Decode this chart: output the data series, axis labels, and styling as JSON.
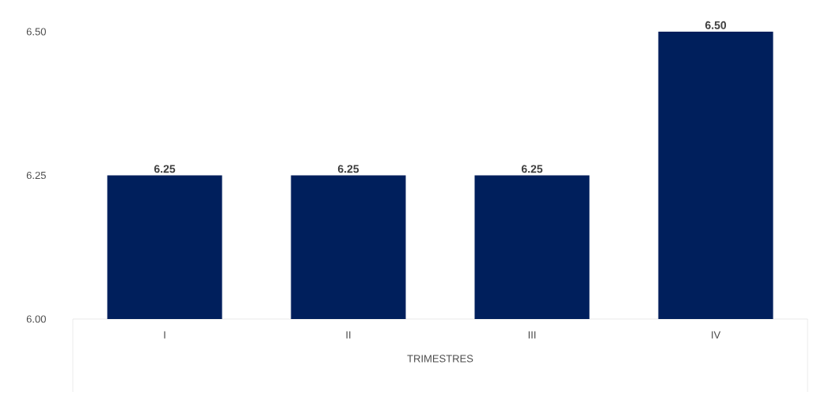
{
  "chart_data": {
    "type": "bar",
    "xlabel": "TRIMESTRES",
    "categories": [
      "I",
      "II",
      "III",
      "IV"
    ],
    "values": [
      6.25,
      6.25,
      6.25,
      6.5
    ],
    "color": "#001f5c",
    "value_labels": [
      "6.25",
      "6.25",
      "6.25",
      "6.50"
    ],
    "ylim": [
      6.0,
      6.5
    ],
    "yticks": [
      {
        "value": 6.0,
        "label": "6.00"
      },
      {
        "value": 6.25,
        "label": "6.25"
      },
      {
        "value": 6.5,
        "label": "6.50"
      }
    ]
  }
}
